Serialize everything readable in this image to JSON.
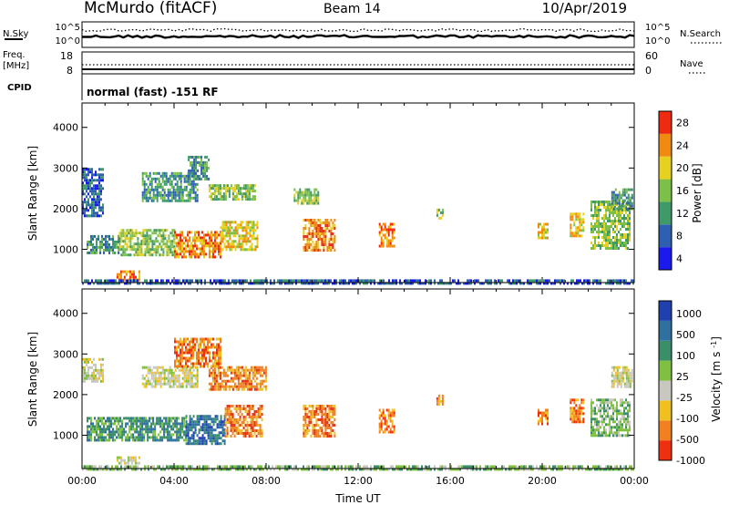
{
  "header": {
    "station": "McMurdo (fitACF)",
    "beam": "Beam 14",
    "date": "10/Apr/2019"
  },
  "panels": {
    "noise": {
      "label": "N.Sky",
      "right_label": "N.Search",
      "y_ticks": [
        "10^5",
        "10^0"
      ]
    },
    "freq": {
      "label_lines": [
        "Freq.",
        "[MHz]"
      ],
      "y_ticks": [
        "18",
        "8"
      ],
      "right_label": "Nave",
      "right_ticks": [
        "60",
        "0"
      ]
    },
    "cpid": {
      "label": "CPID",
      "text": "normal (fast) -151 RF"
    }
  },
  "chart_data": [
    {
      "type": "heatmap",
      "name": "power",
      "ylabel": "Slant Range [km]",
      "xlabel": "Time UT",
      "x_ticks": [
        "00:00",
        "04:00",
        "08:00",
        "12:00",
        "16:00",
        "20:00",
        "00:00"
      ],
      "x_range_hours": [
        0,
        24
      ],
      "y_ticks": [
        1000,
        2000,
        3000,
        4000
      ],
      "y_range_km": [
        180,
        4600
      ],
      "colorbar": {
        "label": "Power [dB]",
        "ticks": [
          "4",
          "8",
          "12",
          "16",
          "20",
          "24",
          "28"
        ],
        "colors": [
          "#1a1aee",
          "#2f5fb0",
          "#3f9a6a",
          "#7cc04a",
          "#e8d020",
          "#f08a10",
          "#ee2a10"
        ]
      },
      "regions": [
        {
          "t0": 0.2,
          "t1": 1.6,
          "r0": 880,
          "r1": 1350,
          "level": 2
        },
        {
          "t0": 1.6,
          "t1": 4.0,
          "r0": 880,
          "r1": 1500,
          "level": 3
        },
        {
          "t0": 4.0,
          "t1": 6.0,
          "r0": 780,
          "r1": 1450,
          "level": 5
        },
        {
          "t0": 6.0,
          "t1": 7.6,
          "r0": 1000,
          "r1": 1700,
          "level": 4
        },
        {
          "t0": 9.6,
          "t1": 11.0,
          "r0": 1000,
          "r1": 1750,
          "level": 5
        },
        {
          "t0": 12.9,
          "t1": 13.6,
          "r0": 1100,
          "r1": 1650,
          "level": 5
        },
        {
          "t0": 15.4,
          "t1": 15.7,
          "r0": 1750,
          "r1": 2000,
          "level": 3
        },
        {
          "t0": 19.8,
          "t1": 20.2,
          "r0": 1300,
          "r1": 1650,
          "level": 4
        },
        {
          "t0": 21.2,
          "t1": 21.8,
          "r0": 1350,
          "r1": 1900,
          "level": 4
        },
        {
          "t0": 22.1,
          "t1": 23.8,
          "r0": 1000,
          "r1": 2200,
          "level": 3
        },
        {
          "t0": 23.0,
          "t1": 23.9,
          "r0": 2000,
          "r1": 2500,
          "level": 2
        },
        {
          "t0": 1.5,
          "t1": 2.5,
          "r0": 220,
          "r1": 480,
          "level": 5
        },
        {
          "t0": 2.6,
          "t1": 5.0,
          "r0": 2200,
          "r1": 2900,
          "level": 2
        },
        {
          "t0": 5.5,
          "t1": 7.5,
          "r0": 2200,
          "r1": 2600,
          "level": 3
        },
        {
          "t0": 4.6,
          "t1": 5.5,
          "r0": 2700,
          "r1": 3300,
          "level": 2
        },
        {
          "t0": 0.0,
          "t1": 0.9,
          "r0": 1800,
          "r1": 3000,
          "level": 1
        },
        {
          "t0": 9.2,
          "t1": 10.3,
          "r0": 2100,
          "r1": 2500,
          "level": 3
        },
        {
          "t0": 0.0,
          "t1": 24.0,
          "r0": 180,
          "r1": 260,
          "level": 1
        }
      ]
    },
    {
      "type": "heatmap",
      "name": "velocity",
      "ylabel": "Slant Range [km]",
      "xlabel": "Time UT",
      "x_ticks": [
        "00:00",
        "04:00",
        "08:00",
        "12:00",
        "16:00",
        "20:00",
        "00:00"
      ],
      "x_range_hours": [
        0,
        24
      ],
      "y_ticks": [
        1000,
        2000,
        3000,
        4000
      ],
      "y_range_km": [
        180,
        4600
      ],
      "colorbar": {
        "label": "Velocity [m s^-1]",
        "ticks": [
          "1000",
          "500",
          "100",
          "25",
          "-25",
          "-100",
          "-500",
          "-1000"
        ],
        "colors": [
          "#2040b0",
          "#2f70a0",
          "#3a8f6a",
          "#80c040",
          "#c8c8c0",
          "#f0c020",
          "#f08020",
          "#ee3010"
        ]
      },
      "regions": [
        {
          "t0": 0.2,
          "t1": 4.5,
          "r0": 850,
          "r1": 1450,
          "level": 2
        },
        {
          "t0": 4.5,
          "t1": 6.2,
          "r0": 800,
          "r1": 1500,
          "level": 1
        },
        {
          "t0": 6.2,
          "t1": 7.8,
          "r0": 1000,
          "r1": 1750,
          "level": 6
        },
        {
          "t0": 9.6,
          "t1": 11.0,
          "r0": 1000,
          "r1": 1750,
          "level": 6
        },
        {
          "t0": 12.9,
          "t1": 13.6,
          "r0": 1100,
          "r1": 1650,
          "level": 6
        },
        {
          "t0": 15.4,
          "t1": 15.7,
          "r0": 1750,
          "r1": 2000,
          "level": 6
        },
        {
          "t0": 19.8,
          "t1": 20.2,
          "r0": 1300,
          "r1": 1650,
          "level": 6
        },
        {
          "t0": 21.2,
          "t1": 21.8,
          "r0": 1350,
          "r1": 1900,
          "level": 6
        },
        {
          "t0": 22.1,
          "t1": 23.8,
          "r0": 1000,
          "r1": 1900,
          "level": 3
        },
        {
          "t0": 23.0,
          "t1": 23.9,
          "r0": 2200,
          "r1": 2700,
          "level": 4
        },
        {
          "t0": 2.6,
          "t1": 5.0,
          "r0": 2200,
          "r1": 2700,
          "level": 4
        },
        {
          "t0": 5.5,
          "t1": 8.0,
          "r0": 2100,
          "r1": 2700,
          "level": 6
        },
        {
          "t0": 4.0,
          "t1": 6.0,
          "r0": 2700,
          "r1": 3400,
          "level": 6
        },
        {
          "t0": 0.0,
          "t1": 0.9,
          "r0": 2300,
          "r1": 2900,
          "level": 4
        },
        {
          "t0": 1.5,
          "t1": 2.5,
          "r0": 300,
          "r1": 480,
          "level": 4
        },
        {
          "t0": 0.0,
          "t1": 24.0,
          "r0": 180,
          "r1": 260,
          "level": 3
        }
      ]
    }
  ]
}
